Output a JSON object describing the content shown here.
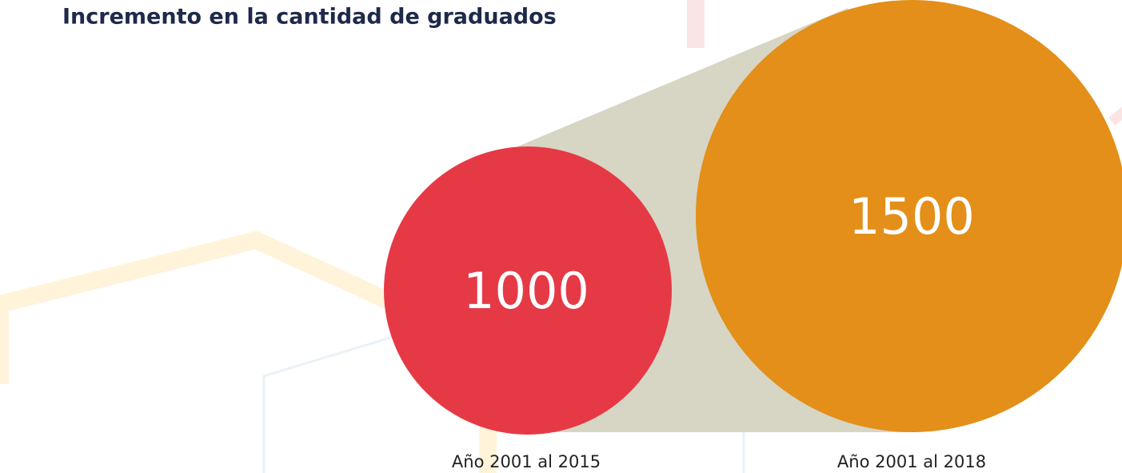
{
  "chart_data": {
    "type": "bubble",
    "title": "Incremento en la cantidad de graduados",
    "categories": [
      "Año 2001 al 2015",
      "Año 2001 al 2018"
    ],
    "values": [
      1000,
      1500
    ],
    "colors": [
      "#e63946",
      "#e38f19"
    ]
  }
}
